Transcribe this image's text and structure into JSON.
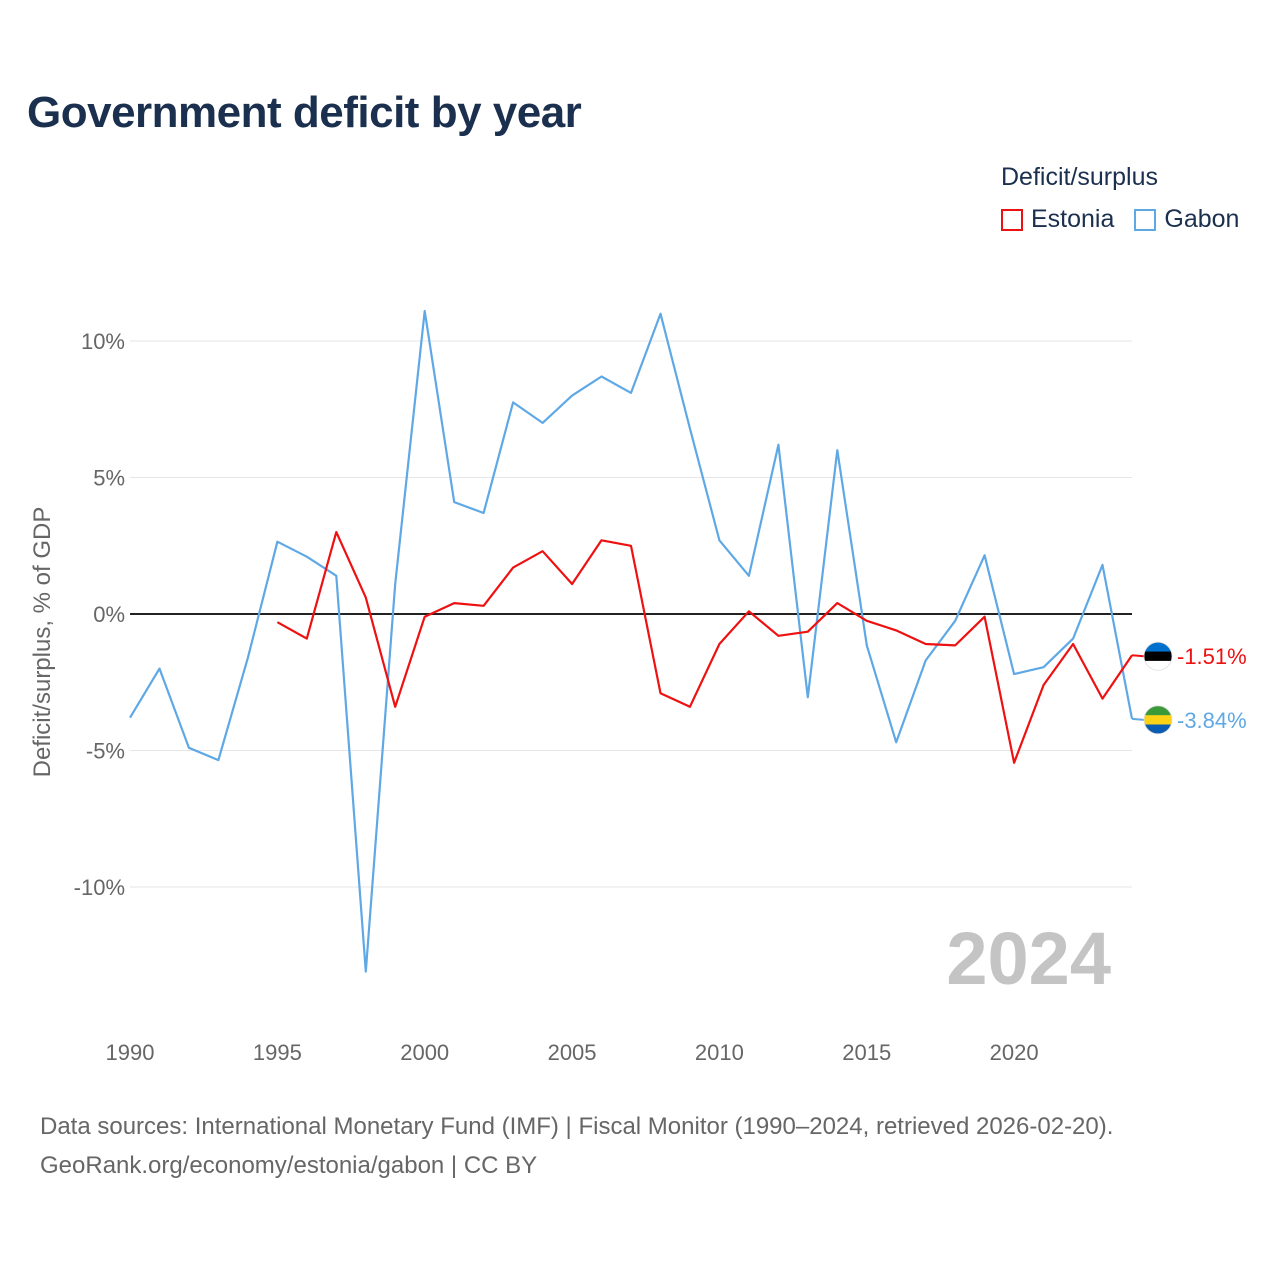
{
  "title": "Government deficit by year",
  "legend": {
    "title": "Deficit/surplus",
    "items": [
      {
        "label": "Estonia",
        "color": "#ee1111"
      },
      {
        "label": "Gabon",
        "color": "#5fa8e6"
      }
    ]
  },
  "source": {
    "line1": "Data sources: International Monetary Fund (IMF) | Fiscal Monitor (1990–2024, retrieved 2026-02-20).",
    "line2": "GeoRank.org/economy/estonia/gabon | CC BY"
  },
  "chart_data": {
    "type": "line",
    "title": "Government deficit by year",
    "ylabel": "Deficit/surplus, % of GDP",
    "xlabel": "",
    "xlim": [
      1990,
      2024
    ],
    "ylim": [
      -14.5,
      12.5
    ],
    "xticks": [
      1990,
      1995,
      2000,
      2005,
      2010,
      2015,
      2020
    ],
    "yticks": [
      -10,
      -5,
      0,
      5,
      10
    ],
    "ytick_labels": [
      "-10%",
      "-5%",
      "0%",
      "5%",
      "10%"
    ],
    "grid": true,
    "legend_position": "top-right",
    "watermark_year": "2024",
    "series": [
      {
        "name": "Estonia",
        "color": "#ee1111",
        "end_label": "-1.51%",
        "flag": "estonia",
        "points": [
          [
            1995,
            -0.3
          ],
          [
            1996,
            -0.9
          ],
          [
            1997,
            3.0
          ],
          [
            1998,
            0.6
          ],
          [
            1999,
            -3.4
          ],
          [
            2000,
            -0.1
          ],
          [
            2001,
            0.4
          ],
          [
            2002,
            0.3
          ],
          [
            2003,
            1.7
          ],
          [
            2004,
            2.3
          ],
          [
            2005,
            1.1
          ],
          [
            2006,
            2.7
          ],
          [
            2007,
            2.5
          ],
          [
            2008,
            -2.9
          ],
          [
            2009,
            -3.4
          ],
          [
            2010,
            -1.1
          ],
          [
            2011,
            0.1
          ],
          [
            2012,
            -0.8
          ],
          [
            2013,
            -0.65
          ],
          [
            2014,
            0.4
          ],
          [
            2015,
            -0.25
          ],
          [
            2016,
            -0.6
          ],
          [
            2017,
            -1.1
          ],
          [
            2018,
            -1.15
          ],
          [
            2019,
            -0.1
          ],
          [
            2020,
            -5.45
          ],
          [
            2021,
            -2.6
          ],
          [
            2022,
            -1.1
          ],
          [
            2023,
            -3.1
          ],
          [
            2024,
            -1.51
          ]
        ]
      },
      {
        "name": "Gabon",
        "color": "#5fa8e6",
        "end_label": "-3.84%",
        "flag": "gabon",
        "points": [
          [
            1990,
            -3.8
          ],
          [
            1991,
            -2.0
          ],
          [
            1992,
            -4.9
          ],
          [
            1993,
            -5.35
          ],
          [
            1994,
            -1.6
          ],
          [
            1995,
            2.65
          ],
          [
            1996,
            2.1
          ],
          [
            1997,
            1.4
          ],
          [
            1998,
            -13.1
          ],
          [
            1999,
            1.1
          ],
          [
            2000,
            11.1
          ],
          [
            2001,
            4.1
          ],
          [
            2002,
            3.7
          ],
          [
            2003,
            7.75
          ],
          [
            2004,
            7.0
          ],
          [
            2005,
            8.0
          ],
          [
            2006,
            8.7
          ],
          [
            2007,
            8.1
          ],
          [
            2008,
            11.0
          ],
          [
            2009,
            6.8
          ],
          [
            2010,
            2.7
          ],
          [
            2011,
            1.4
          ],
          [
            2012,
            6.2
          ],
          [
            2013,
            -3.05
          ],
          [
            2014,
            6.0
          ],
          [
            2015,
            -1.15
          ],
          [
            2016,
            -4.7
          ],
          [
            2017,
            -1.7
          ],
          [
            2018,
            -0.25
          ],
          [
            2019,
            2.15
          ],
          [
            2020,
            -2.2
          ],
          [
            2021,
            -1.95
          ],
          [
            2022,
            -0.9
          ],
          [
            2023,
            1.8
          ],
          [
            2024,
            -3.84
          ]
        ]
      }
    ]
  }
}
